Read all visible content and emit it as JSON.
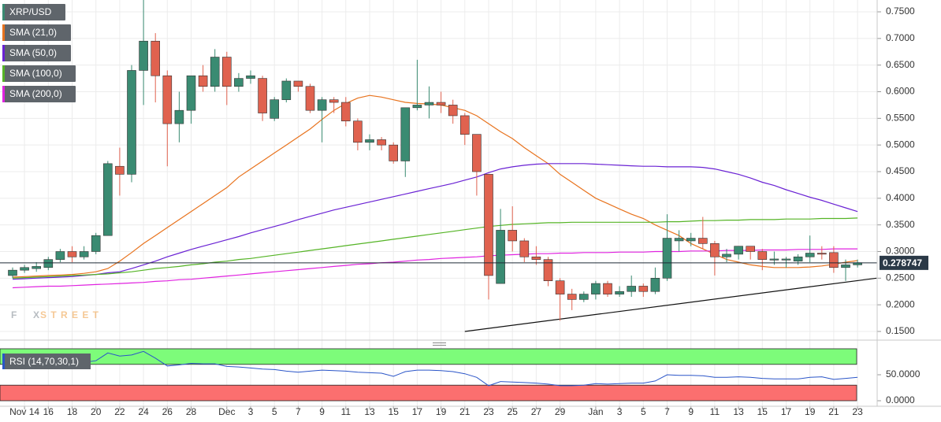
{
  "chart_data": [
    {
      "type": "candlestick",
      "categories": [
        null,
        "Nov 14",
        null,
        "16",
        null,
        "18",
        null,
        "20",
        null,
        "22",
        null,
        "24",
        null,
        "26",
        null,
        "28",
        null,
        null,
        "Dec",
        null,
        "3",
        null,
        "5",
        null,
        "7",
        null,
        "9",
        null,
        "11",
        null,
        "13",
        null,
        "15",
        null,
        "17",
        null,
        "19",
        null,
        "21",
        null,
        "23",
        null,
        "25",
        null,
        "27",
        null,
        "29",
        null,
        null,
        "Jan",
        null,
        "3",
        null,
        "5",
        null,
        "7",
        null,
        "9",
        null,
        "11",
        null,
        "13",
        null,
        "15",
        null,
        "17",
        null,
        "19",
        null,
        "21",
        null,
        "23"
      ],
      "candles": {
        "name": "XRP/USD",
        "up_color": "#3a8b72",
        "down_color": "#e0624f",
        "open": [
          0.255,
          0.265,
          0.268,
          0.27,
          0.285,
          0.3,
          0.29,
          0.3,
          0.33,
          0.46,
          0.445,
          0.64,
          0.695,
          0.63,
          0.54,
          0.565,
          0.63,
          0.61,
          0.665,
          0.61,
          0.625,
          0.625,
          0.55,
          0.585,
          0.62,
          0.61,
          0.565,
          0.585,
          0.58,
          0.545,
          0.505,
          0.51,
          0.5,
          0.47,
          0.57,
          0.575,
          0.58,
          0.575,
          0.555,
          0.52,
          0.445,
          0.24,
          0.34,
          0.32,
          0.29,
          0.285,
          0.245,
          0.22,
          0.21,
          0.22,
          0.24,
          0.22,
          0.225,
          0.235,
          0.225,
          0.25,
          0.32,
          0.32,
          0.325,
          0.315,
          0.29,
          0.295,
          0.31,
          0.3,
          0.284,
          0.284,
          0.282,
          0.29,
          0.297,
          0.298,
          0.27,
          0.275
        ],
        "high": [
          0.27,
          0.275,
          0.28,
          0.29,
          0.305,
          0.31,
          0.31,
          0.335,
          0.47,
          0.495,
          0.65,
          0.78,
          0.71,
          0.64,
          0.6,
          0.63,
          0.65,
          0.68,
          0.675,
          0.635,
          0.64,
          0.63,
          0.59,
          0.625,
          0.62,
          0.615,
          0.59,
          0.59,
          0.59,
          0.55,
          0.52,
          0.515,
          0.505,
          0.57,
          0.66,
          0.61,
          0.6,
          0.585,
          0.56,
          0.52,
          0.445,
          0.38,
          0.385,
          0.325,
          0.31,
          0.29,
          0.25,
          0.23,
          0.225,
          0.245,
          0.245,
          0.235,
          0.255,
          0.24,
          0.27,
          0.37,
          0.34,
          0.335,
          0.365,
          0.32,
          0.305,
          0.31,
          0.31,
          0.305,
          0.3,
          0.29,
          0.295,
          0.33,
          0.31,
          0.31,
          0.285,
          0.285
        ],
        "low": [
          0.25,
          0.26,
          0.262,
          0.265,
          0.28,
          0.28,
          0.285,
          0.295,
          0.33,
          0.405,
          0.43,
          0.575,
          0.58,
          0.46,
          0.505,
          0.54,
          0.6,
          0.6,
          0.575,
          0.6,
          0.615,
          0.545,
          0.545,
          0.58,
          0.6,
          0.56,
          0.505,
          0.56,
          0.535,
          0.49,
          0.49,
          0.49,
          0.465,
          0.44,
          0.565,
          0.55,
          0.56,
          0.54,
          0.5,
          0.405,
          0.21,
          0.24,
          0.3,
          0.28,
          0.275,
          0.235,
          0.17,
          0.19,
          0.205,
          0.21,
          0.215,
          0.215,
          0.215,
          0.215,
          0.22,
          0.245,
          0.3,
          0.31,
          0.305,
          0.255,
          0.28,
          0.285,
          0.285,
          0.265,
          0.275,
          0.27,
          0.275,
          0.28,
          0.285,
          0.26,
          0.245,
          0.27
        ],
        "close": [
          0.265,
          0.27,
          0.272,
          0.285,
          0.3,
          0.29,
          0.3,
          0.33,
          0.465,
          0.445,
          0.64,
          0.695,
          0.63,
          0.54,
          0.565,
          0.63,
          0.61,
          0.665,
          0.61,
          0.625,
          0.63,
          0.56,
          0.585,
          0.62,
          0.61,
          0.565,
          0.585,
          0.58,
          0.545,
          0.505,
          0.51,
          0.5,
          0.47,
          0.57,
          0.575,
          0.58,
          0.575,
          0.555,
          0.52,
          0.45,
          0.255,
          0.34,
          0.32,
          0.29,
          0.285,
          0.245,
          0.22,
          0.21,
          0.22,
          0.24,
          0.22,
          0.225,
          0.235,
          0.225,
          0.25,
          0.325,
          0.325,
          0.325,
          0.315,
          0.29,
          0.295,
          0.31,
          0.3,
          0.285,
          0.286,
          0.286,
          0.29,
          0.297,
          0.295,
          0.27,
          0.275,
          0.279
        ]
      },
      "series": [
        {
          "name": "SMA (21,0)",
          "color": "#e8731e",
          "values": [
            0.252,
            0.253,
            0.254,
            0.255,
            0.256,
            0.257,
            0.259,
            0.262,
            0.268,
            0.282,
            0.298,
            0.315,
            0.33,
            0.345,
            0.36,
            0.375,
            0.39,
            0.405,
            0.42,
            0.44,
            0.455,
            0.47,
            0.485,
            0.5,
            0.515,
            0.53,
            0.548,
            0.565,
            0.578,
            0.588,
            0.593,
            0.59,
            0.585,
            0.58,
            0.578,
            0.577,
            0.575,
            0.57,
            0.565,
            0.555,
            0.54,
            0.525,
            0.512,
            0.495,
            0.48,
            0.465,
            0.445,
            0.43,
            0.415,
            0.4,
            0.39,
            0.38,
            0.37,
            0.362,
            0.35,
            0.34,
            0.33,
            0.315,
            0.305,
            0.295,
            0.285,
            0.28,
            0.275,
            0.272,
            0.27,
            0.27,
            0.27,
            0.271,
            0.273,
            0.276,
            0.28,
            0.283
          ]
        },
        {
          "name": "SMA (50,0)",
          "color": "#6a22d4",
          "values": [
            0.248,
            0.249,
            0.25,
            0.251,
            0.252,
            0.253,
            0.255,
            0.257,
            0.26,
            0.262,
            0.268,
            0.275,
            0.282,
            0.29,
            0.297,
            0.304,
            0.31,
            0.316,
            0.322,
            0.328,
            0.335,
            0.341,
            0.347,
            0.353,
            0.36,
            0.366,
            0.372,
            0.378,
            0.383,
            0.388,
            0.393,
            0.398,
            0.403,
            0.408,
            0.413,
            0.418,
            0.423,
            0.428,
            0.434,
            0.44,
            0.448,
            0.455,
            0.459,
            0.462,
            0.464,
            0.465,
            0.465,
            0.465,
            0.465,
            0.464,
            0.463,
            0.462,
            0.461,
            0.46,
            0.46,
            0.459,
            0.459,
            0.459,
            0.458,
            0.455,
            0.45,
            0.445,
            0.438,
            0.43,
            0.424,
            0.416,
            0.409,
            0.402,
            0.396,
            0.389,
            0.382,
            0.375
          ]
        },
        {
          "name": "SMA (100,0)",
          "color": "#55b426",
          "values": [
            0.25,
            0.251,
            0.252,
            0.253,
            0.254,
            0.255,
            0.256,
            0.257,
            0.258,
            0.26,
            0.262,
            0.265,
            0.268,
            0.27,
            0.272,
            0.275,
            0.277,
            0.28,
            0.282,
            0.285,
            0.287,
            0.29,
            0.293,
            0.296,
            0.299,
            0.302,
            0.305,
            0.308,
            0.311,
            0.314,
            0.317,
            0.32,
            0.323,
            0.326,
            0.329,
            0.332,
            0.335,
            0.338,
            0.341,
            0.344,
            0.347,
            0.349,
            0.351,
            0.352,
            0.353,
            0.354,
            0.354,
            0.355,
            0.355,
            0.355,
            0.355,
            0.355,
            0.355,
            0.355,
            0.355,
            0.356,
            0.356,
            0.357,
            0.358,
            0.358,
            0.359,
            0.359,
            0.36,
            0.36,
            0.36,
            0.361,
            0.361,
            0.361,
            0.362,
            0.362,
            0.362,
            0.363
          ]
        },
        {
          "name": "SMA (200,0)",
          "color": "#e023e0",
          "values": [
            0.232,
            0.233,
            0.234,
            0.235,
            0.235,
            0.236,
            0.237,
            0.238,
            0.239,
            0.24,
            0.241,
            0.242,
            0.244,
            0.245,
            0.247,
            0.248,
            0.25,
            0.252,
            0.254,
            0.256,
            0.258,
            0.26,
            0.262,
            0.264,
            0.266,
            0.268,
            0.27,
            0.272,
            0.274,
            0.276,
            0.277,
            0.279,
            0.28,
            0.282,
            0.284,
            0.285,
            0.287,
            0.288,
            0.289,
            0.29,
            0.292,
            0.293,
            0.294,
            0.295,
            0.296,
            0.296,
            0.297,
            0.297,
            0.298,
            0.298,
            0.298,
            0.299,
            0.299,
            0.299,
            0.3,
            0.3,
            0.3,
            0.301,
            0.301,
            0.301,
            0.302,
            0.302,
            0.302,
            0.303,
            0.303,
            0.303,
            0.304,
            0.304,
            0.304,
            0.305,
            0.305,
            0.305
          ]
        }
      ],
      "trendline": {
        "category_index": [
          38,
          72.6
        ],
        "values": [
          0.15,
          0.25
        ],
        "color": "#111111"
      },
      "last_price": 0.278747,
      "ylim": [
        0.1337,
        0.7722
      ],
      "yticks": [
        {
          "value": 0.15,
          "label": "0.1500"
        },
        {
          "value": 0.2,
          "label": "0.2000"
        },
        {
          "value": 0.25,
          "label": "0.2500"
        },
        {
          "value": 0.3,
          "label": "0.3000"
        },
        {
          "value": 0.35,
          "label": "0.3500"
        },
        {
          "value": 0.4,
          "label": "0.4000"
        },
        {
          "value": 0.45,
          "label": "0.4500"
        },
        {
          "value": 0.5,
          "label": "0.5000"
        },
        {
          "value": 0.55,
          "label": "0.5500"
        },
        {
          "value": 0.6,
          "label": "0.6000"
        },
        {
          "value": 0.65,
          "label": "0.6500"
        },
        {
          "value": 0.7,
          "label": "0.7000"
        },
        {
          "value": 0.75,
          "label": "0.7500"
        }
      ],
      "grid": true,
      "watermark": {
        "prefix": "FX",
        "suffix": "STREET"
      }
    },
    {
      "type": "line",
      "label": "RSI (14,70,30,1)",
      "series": [
        {
          "name": "RSI",
          "color": "#2a55c8",
          "values": [
            67,
            68,
            69,
            70,
            71,
            72,
            74,
            77,
            92,
            86,
            88,
            95,
            82,
            67,
            69,
            72,
            71,
            71,
            66,
            65,
            63,
            61,
            60,
            57,
            55,
            57,
            59,
            58,
            57,
            55,
            54,
            53,
            47,
            56,
            59,
            59,
            58,
            56,
            52,
            45,
            29,
            37,
            36,
            35,
            34,
            32,
            29,
            29,
            30,
            33,
            32,
            33,
            34,
            34,
            38,
            50,
            49,
            49,
            48,
            45,
            45,
            46,
            45,
            43,
            42,
            42,
            42,
            45,
            46,
            41,
            43,
            45
          ]
        }
      ],
      "overbought": [
        70,
        100
      ],
      "overbought_color": "#7dfc7a",
      "oversold": [
        0,
        30
      ],
      "oversold_color": "#fb6f6f",
      "ylim": [
        -10.6,
        110.6
      ],
      "yticks": [
        {
          "value": 50,
          "label": "50.0000"
        },
        {
          "value": 0,
          "label": "0.0000"
        }
      ]
    }
  ]
}
